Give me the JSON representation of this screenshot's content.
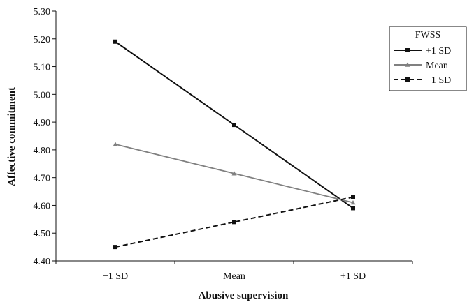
{
  "chart_data": {
    "type": "line",
    "title": "",
    "xlabel": "Abusive supervision",
    "ylabel": "Affective commitment",
    "categories": [
      "−1 SD",
      "Mean",
      "+1 SD"
    ],
    "ylim": [
      4.4,
      5.3
    ],
    "yticks": [
      "4.40",
      "4.50",
      "4.60",
      "4.70",
      "4.80",
      "4.90",
      "5.00",
      "5.10",
      "5.20",
      "5.30"
    ],
    "grid": false,
    "legend": {
      "title": "FWSS",
      "placement": "top-right"
    },
    "series": [
      {
        "name": "+1 SD",
        "values": [
          5.19,
          4.89,
          4.59
        ],
        "color": "#111111",
        "style": "solid",
        "marker": "square"
      },
      {
        "name": "Mean",
        "values": [
          4.82,
          4.715,
          4.61
        ],
        "color": "#808080",
        "style": "solid",
        "marker": "triangle"
      },
      {
        "name": "−1 SD",
        "values": [
          4.45,
          4.54,
          4.63
        ],
        "color": "#111111",
        "style": "dashed",
        "marker": "square"
      }
    ]
  }
}
